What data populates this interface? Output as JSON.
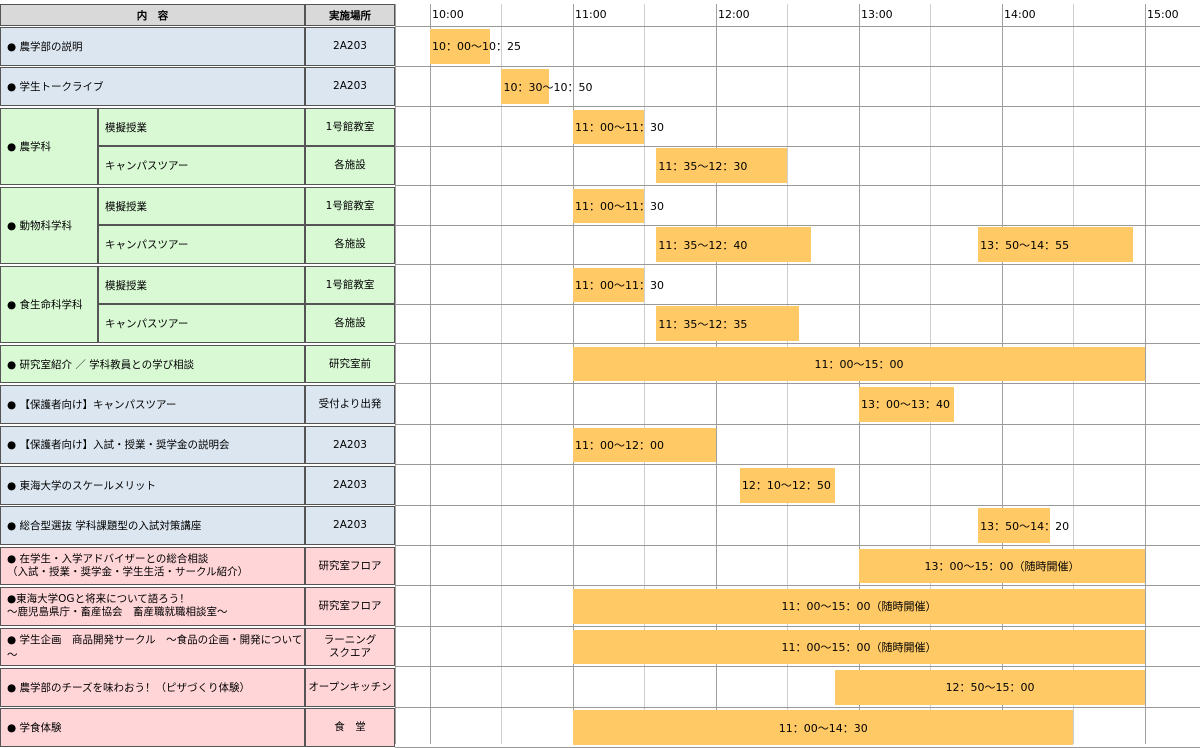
{
  "header": {
    "content": "内　容",
    "location": "実施場所"
  },
  "hours": [
    "10:00",
    "11:00",
    "12:00",
    "13:00",
    "14:00",
    "15:00"
  ],
  "rows": [
    {
      "label": "● 農学部の説明",
      "loc": "2A203",
      "color": "blue",
      "bars": [
        {
          "start": "10:00",
          "end": "10:25",
          "text": "10：00～10：25"
        }
      ]
    },
    {
      "label": "● 学生トークライブ",
      "loc": "2A203",
      "color": "blue",
      "bars": [
        {
          "start": "10:30",
          "end": "10:50",
          "text": "10：30～10：50"
        }
      ]
    },
    {
      "label": "● 農学科",
      "color": "green",
      "subs": [
        {
          "label": "模擬授業",
          "loc": "1号館教室",
          "bars": [
            {
              "start": "11:00",
              "end": "11:30",
              "text": "11：00～11：30"
            }
          ]
        },
        {
          "label": "キャンパスツアー",
          "loc": "各施設",
          "bars": [
            {
              "start": "11:35",
              "end": "12:30",
              "text": "11：35～12：30"
            }
          ]
        }
      ]
    },
    {
      "label": "● 動物科学科",
      "color": "green",
      "subs": [
        {
          "label": "模擬授業",
          "loc": "1号館教室",
          "bars": [
            {
              "start": "11:00",
              "end": "11:30",
              "text": "11：00～11：30"
            }
          ]
        },
        {
          "label": "キャンパスツアー",
          "loc": "各施設",
          "bars": [
            {
              "start": "11:35",
              "end": "12:40",
              "text": "11：35～12：40"
            },
            {
              "start": "13:50",
              "end": "14:55",
              "text": "13：50～14：55"
            }
          ]
        }
      ]
    },
    {
      "label": "● 食生命科学科",
      "color": "green",
      "subs": [
        {
          "label": "模擬授業",
          "loc": "1号館教室",
          "bars": [
            {
              "start": "11:00",
              "end": "11:30",
              "text": "11：00～11：30"
            }
          ]
        },
        {
          "label": "キャンパスツアー",
          "loc": "各施設",
          "bars": [
            {
              "start": "11:35",
              "end": "12:35",
              "text": "11：35～12：35"
            }
          ]
        }
      ]
    },
    {
      "label": "● 研究室紹介 ／ 学科教員との学び相談",
      "loc": "研究室前",
      "color": "green",
      "bars": [
        {
          "start": "11:00",
          "end": "15:00",
          "text": "11：00～15：00",
          "center": true
        }
      ]
    },
    {
      "label": "● 【保護者向け】キャンパスツアー",
      "loc": "受付より出発",
      "color": "blue",
      "bars": [
        {
          "start": "13:00",
          "end": "13:40",
          "text": "13：00～13：40"
        }
      ]
    },
    {
      "label": "● 【保護者向け】入試・授業・奨学金の説明会",
      "loc": "2A203",
      "color": "blue",
      "bars": [
        {
          "start": "11:00",
          "end": "12:00",
          "text": "11：00～12：00"
        }
      ]
    },
    {
      "label": "● 東海大学のスケールメリット",
      "loc": "2A203",
      "color": "blue",
      "bars": [
        {
          "start": "12:10",
          "end": "12:50",
          "text": "12：10～12：50"
        }
      ]
    },
    {
      "label": "● 総合型選抜 学科課題型の入試対策講座",
      "loc": "2A203",
      "color": "blue",
      "bars": [
        {
          "start": "13:50",
          "end": "14:20",
          "text": "13：50～14：20"
        }
      ]
    },
    {
      "label": "● 在学生・入学アドバイザーとの総合相談\n（入試・授業・奨学金・学生生活・サークル紹介）",
      "loc": "研究室フロア",
      "color": "pink",
      "bars": [
        {
          "start": "13:00",
          "end": "15:00",
          "text": "13：00～15：00（随時開催）",
          "center": true
        }
      ]
    },
    {
      "label": "●東海大学OGと将来について語ろう！\n～鹿児島県庁・畜産協会　畜産職就職相談室～",
      "loc": "研究室フロア",
      "color": "pink",
      "bars": [
        {
          "start": "11:00",
          "end": "15:00",
          "text": "11：00～15：00（随時開催）",
          "center": true
        }
      ]
    },
    {
      "label": "● 学生企画　商品開発サークル　～食品の企画・開発について～",
      "loc": "ラーニング\nスクエア",
      "color": "pink",
      "bars": [
        {
          "start": "11:00",
          "end": "15:00",
          "text": "11：00～15：00（随時開催）",
          "center": true
        }
      ]
    },
    {
      "label": "● 農学部のチーズを味わおう！（ピザづくり体験）",
      "loc": "オープンキッチン",
      "color": "pink",
      "bars": [
        {
          "start": "12:50",
          "end": "15:00",
          "text": "12：50～15：00",
          "center": true
        }
      ]
    },
    {
      "label": "● 学食体験",
      "loc": "食　堂",
      "color": "pink",
      "bars": [
        {
          "start": "11:00",
          "end": "14:30",
          "text": "11：00～14：30",
          "center": true
        }
      ]
    }
  ]
}
